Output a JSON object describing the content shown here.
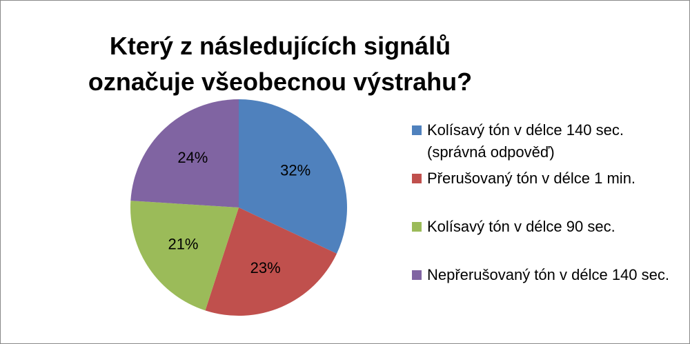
{
  "chart_data": {
    "type": "pie",
    "title": "Který z následujících signálů označuje všeobecnou výstrahu?",
    "categories": [
      "Kolísavý tón v délce 140 sec. (správná odpověď)",
      "Přerušovaný tón v délce 1 min.",
      "Kolísavý tón v délce 90 sec.",
      "Nepřerušovaný tón v délce 140 sec."
    ],
    "values": [
      32,
      23,
      21,
      24
    ],
    "value_labels": [
      "32%",
      "23%",
      "21%",
      "24%"
    ],
    "colors": [
      "#4f81bd",
      "#c0504d",
      "#9bbb59",
      "#8064a2"
    ],
    "legend": "right"
  }
}
